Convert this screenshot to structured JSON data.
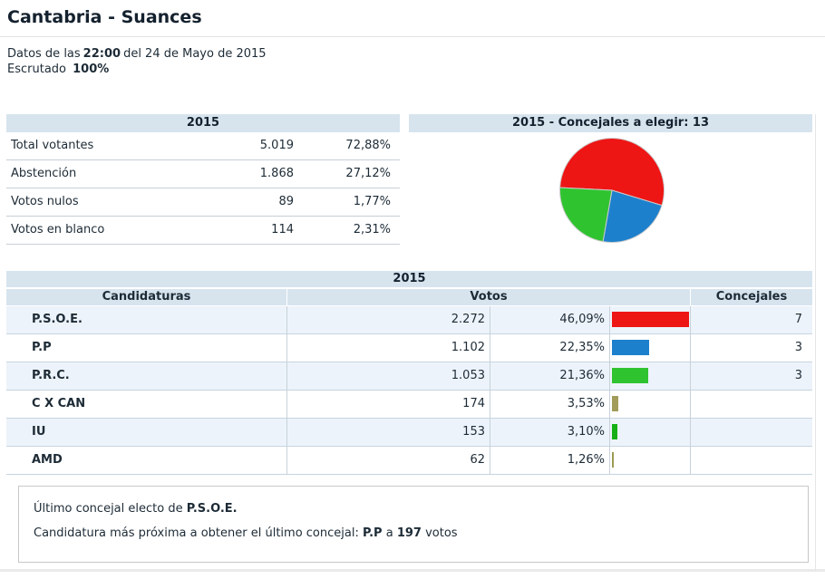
{
  "page": {
    "title": "Cantabria - Suances",
    "datos_prefix": "Datos de las",
    "datos_time": "22:00",
    "datos_suffix": "del 24 de Mayo de 2015",
    "escrutado_label": "Escrutado",
    "escrutado_value": "100%"
  },
  "summary_table": {
    "header": "2015",
    "rows": [
      {
        "label": "Total votantes",
        "value": "5.019",
        "pct": "72,88%"
      },
      {
        "label": "Abstención",
        "value": "1.868",
        "pct": "27,12%"
      },
      {
        "label": "Votos nulos",
        "value": "89",
        "pct": "1,77%"
      },
      {
        "label": "Votos en blanco",
        "value": "114",
        "pct": "2,31%"
      }
    ]
  },
  "pie_panel": {
    "header": "2015 - Concejales a elegir: 13"
  },
  "chart_data": {
    "type": "pie",
    "title": "2015 - Concejales a elegir: 13",
    "labels": [
      "P.S.O.E.",
      "P.P",
      "P.R.C."
    ],
    "values": [
      7,
      3,
      3
    ],
    "total_seats": 13,
    "colors": [
      "#ee1515",
      "#1d80cc",
      "#30c330"
    ],
    "start_angle_deg": 177,
    "direction": "clockwise",
    "stroke_color": "#cccccc"
  },
  "results_table": {
    "header": "2015",
    "columns": {
      "candidaturas": "Candidaturas",
      "votos": "Votos",
      "concejales": "Concejales"
    },
    "rows": [
      {
        "party": "P.S.O.E.",
        "votes": "2.272",
        "pct": "46,09%",
        "pct_value": 46.09,
        "bar_color": "#ee1515",
        "seats": "7"
      },
      {
        "party": "P.P",
        "votes": "1.102",
        "pct": "22,35%",
        "pct_value": 22.35,
        "bar_color": "#1d80cc",
        "seats": "3"
      },
      {
        "party": "P.R.C.",
        "votes": "1.053",
        "pct": "21,36%",
        "pct_value": 21.36,
        "bar_color": "#30c330",
        "seats": "3"
      },
      {
        "party": "C X CAN",
        "votes": "174",
        "pct": "3,53%",
        "pct_value": 3.53,
        "bar_color": "#a29c5a",
        "seats": ""
      },
      {
        "party": "IU",
        "votes": "153",
        "pct": "3,10%",
        "pct_value": 3.1,
        "bar_color": "#16b016",
        "seats": ""
      },
      {
        "party": "AMD",
        "votes": "62",
        "pct": "1,26%",
        "pct_value": 1.26,
        "bar_color": "#9b9a51",
        "seats": ""
      }
    ]
  },
  "footer_box": {
    "line1_prefix": "Último concejal electo de ",
    "line1_party": "P.S.O.E.",
    "line2_prefix": "Candidatura más próxima a obtener el último concejal: ",
    "line2_party": "P.P",
    "line2_mid": " a ",
    "line2_votes": "197",
    "line2_suffix": " votos"
  },
  "colors": {
    "band_background": "#d7e4ee",
    "row_tint": "#edf3fa",
    "text": "#1d2b36"
  }
}
